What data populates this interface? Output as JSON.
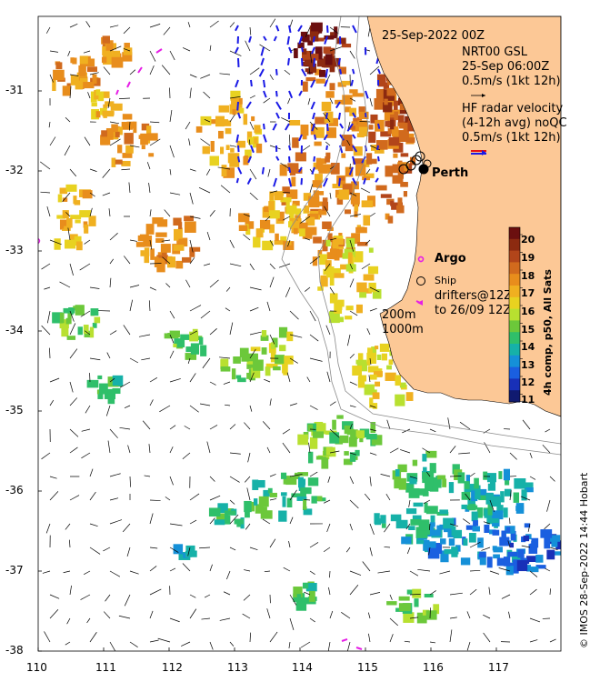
{
  "header": {
    "date": "25-Sep-2022 00Z",
    "nrt_line1": "NRT00 GSL",
    "nrt_line2": "25-Sep 06:00Z",
    "scale_line": "0.5m/s (1kt 12h)",
    "hf_line1": "HF radar velocity",
    "hf_line2": "(4-12h avg) noQC",
    "hf_line3": "0.5m/s (1kt 12h)"
  },
  "places": {
    "city": "Perth"
  },
  "legend": {
    "argo": "Argo",
    "ship": "Ship",
    "drifters_line1": "drifters@12Z",
    "drifters_line2": "to 26/09 12Z",
    "depth_200": "200m",
    "depth_1000": "1000m"
  },
  "colorbar": {
    "title": "4h comp, p50, All Sats",
    "ticks": [
      "20",
      "19",
      "18",
      "17",
      "16",
      "15",
      "14",
      "13",
      "12",
      "11"
    ],
    "colors": [
      "#6b0f0f",
      "#8c2a10",
      "#b2451a",
      "#d16a1d",
      "#e88d1c",
      "#f0b020",
      "#e8d220",
      "#b8e030",
      "#6cc83a",
      "#2fbf6a",
      "#16b1a8",
      "#1590d8",
      "#1a5fe0",
      "#1830b8",
      "#101a70"
    ]
  },
  "axes": {
    "x_ticks": [
      "110",
      "111",
      "112",
      "113",
      "114",
      "115",
      "116",
      "117"
    ],
    "y_ticks": [
      "-31",
      "-32",
      "-33",
      "-34",
      "-35",
      "-36",
      "-37",
      "-38"
    ]
  },
  "credit": "© IMOS 28-Sep-2022 14:44 Hobart",
  "style": {
    "land": "#fcc896",
    "arrow": "#000000",
    "hf_arrow": "#1a1ae6",
    "argo": "#e61ee6",
    "bathy": "#8a8a8a"
  }
}
